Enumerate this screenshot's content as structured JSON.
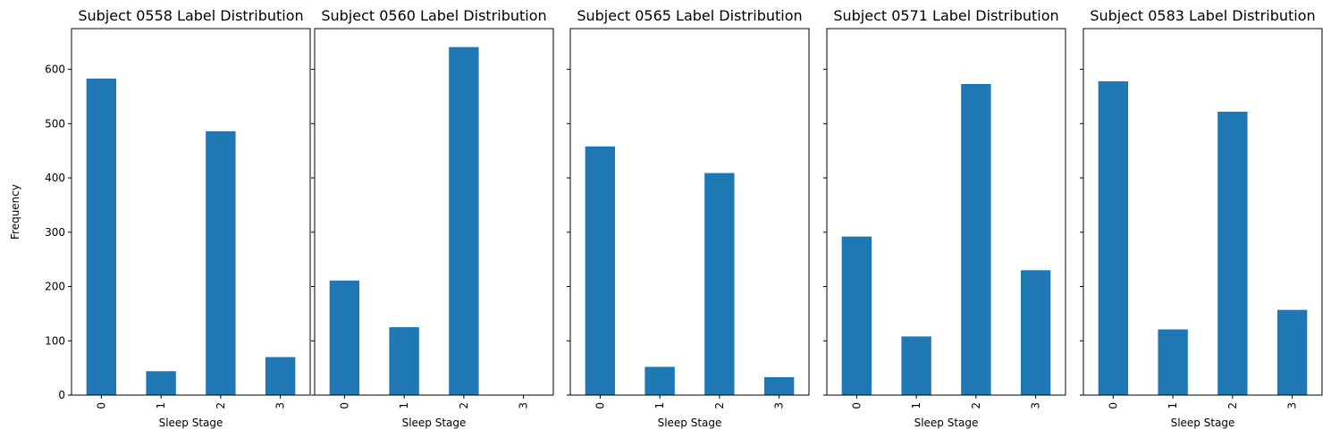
{
  "chart_data": [
    {
      "type": "bar",
      "title": "Subject 0558 Label Distribution",
      "xlabel": "Sleep Stage",
      "ylabel": "Frequency",
      "categories": [
        "0",
        "1",
        "2",
        "3"
      ],
      "values": [
        583,
        44,
        486,
        70
      ],
      "ylim": [
        0,
        675
      ],
      "yticks": [
        "0",
        "100",
        "200",
        "300",
        "400",
        "500",
        "600"
      ]
    },
    {
      "type": "bar",
      "title": "Subject 0560 Label Distribution",
      "xlabel": "Sleep Stage",
      "ylabel": "",
      "categories": [
        "0",
        "1",
        "2",
        "3"
      ],
      "values": [
        211,
        125,
        641,
        0
      ],
      "ylim": [
        0,
        675
      ]
    },
    {
      "type": "bar",
      "title": "Subject 0565 Label Distribution",
      "xlabel": "Sleep Stage",
      "ylabel": "",
      "categories": [
        "0",
        "1",
        "2",
        "3"
      ],
      "values": [
        458,
        52,
        409,
        33
      ],
      "ylim": [
        0,
        675
      ]
    },
    {
      "type": "bar",
      "title": "Subject 0571 Label Distribution",
      "xlabel": "Sleep Stage",
      "ylabel": "",
      "categories": [
        "0",
        "1",
        "2",
        "3"
      ],
      "values": [
        292,
        108,
        573,
        230
      ],
      "ylim": [
        0,
        675
      ]
    },
    {
      "type": "bar",
      "title": "Subject 0583 Label Distribution",
      "xlabel": "Sleep Stage",
      "ylabel": "",
      "categories": [
        "0",
        "1",
        "2",
        "3"
      ],
      "values": [
        578,
        121,
        522,
        157
      ],
      "ylim": [
        0,
        675
      ]
    }
  ],
  "style": {
    "bar_color": "#1f77b4",
    "sharey": true
  }
}
